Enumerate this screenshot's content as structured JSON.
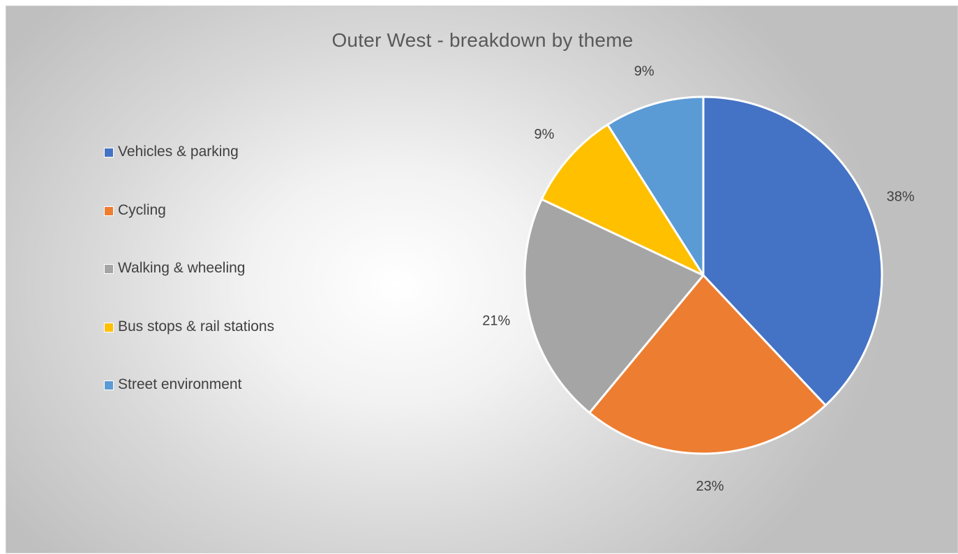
{
  "chart_data": {
    "type": "pie",
    "title": "Outer West - breakdown by theme",
    "legend_position": "left",
    "categories": [
      "Vehicles & parking",
      "Cycling",
      "Walking & wheeling",
      "Bus stops & rail stations",
      "Street environment"
    ],
    "values": [
      38,
      23,
      21,
      9,
      9
    ],
    "value_labels": [
      "38%",
      "23%",
      "21%",
      "9%",
      "9%"
    ],
    "colors": [
      "#4472c4",
      "#ed7d31",
      "#a5a5a5",
      "#ffc000",
      "#5b9bd5"
    ],
    "start_angle_deg": 0,
    "direction": "clockwise"
  }
}
